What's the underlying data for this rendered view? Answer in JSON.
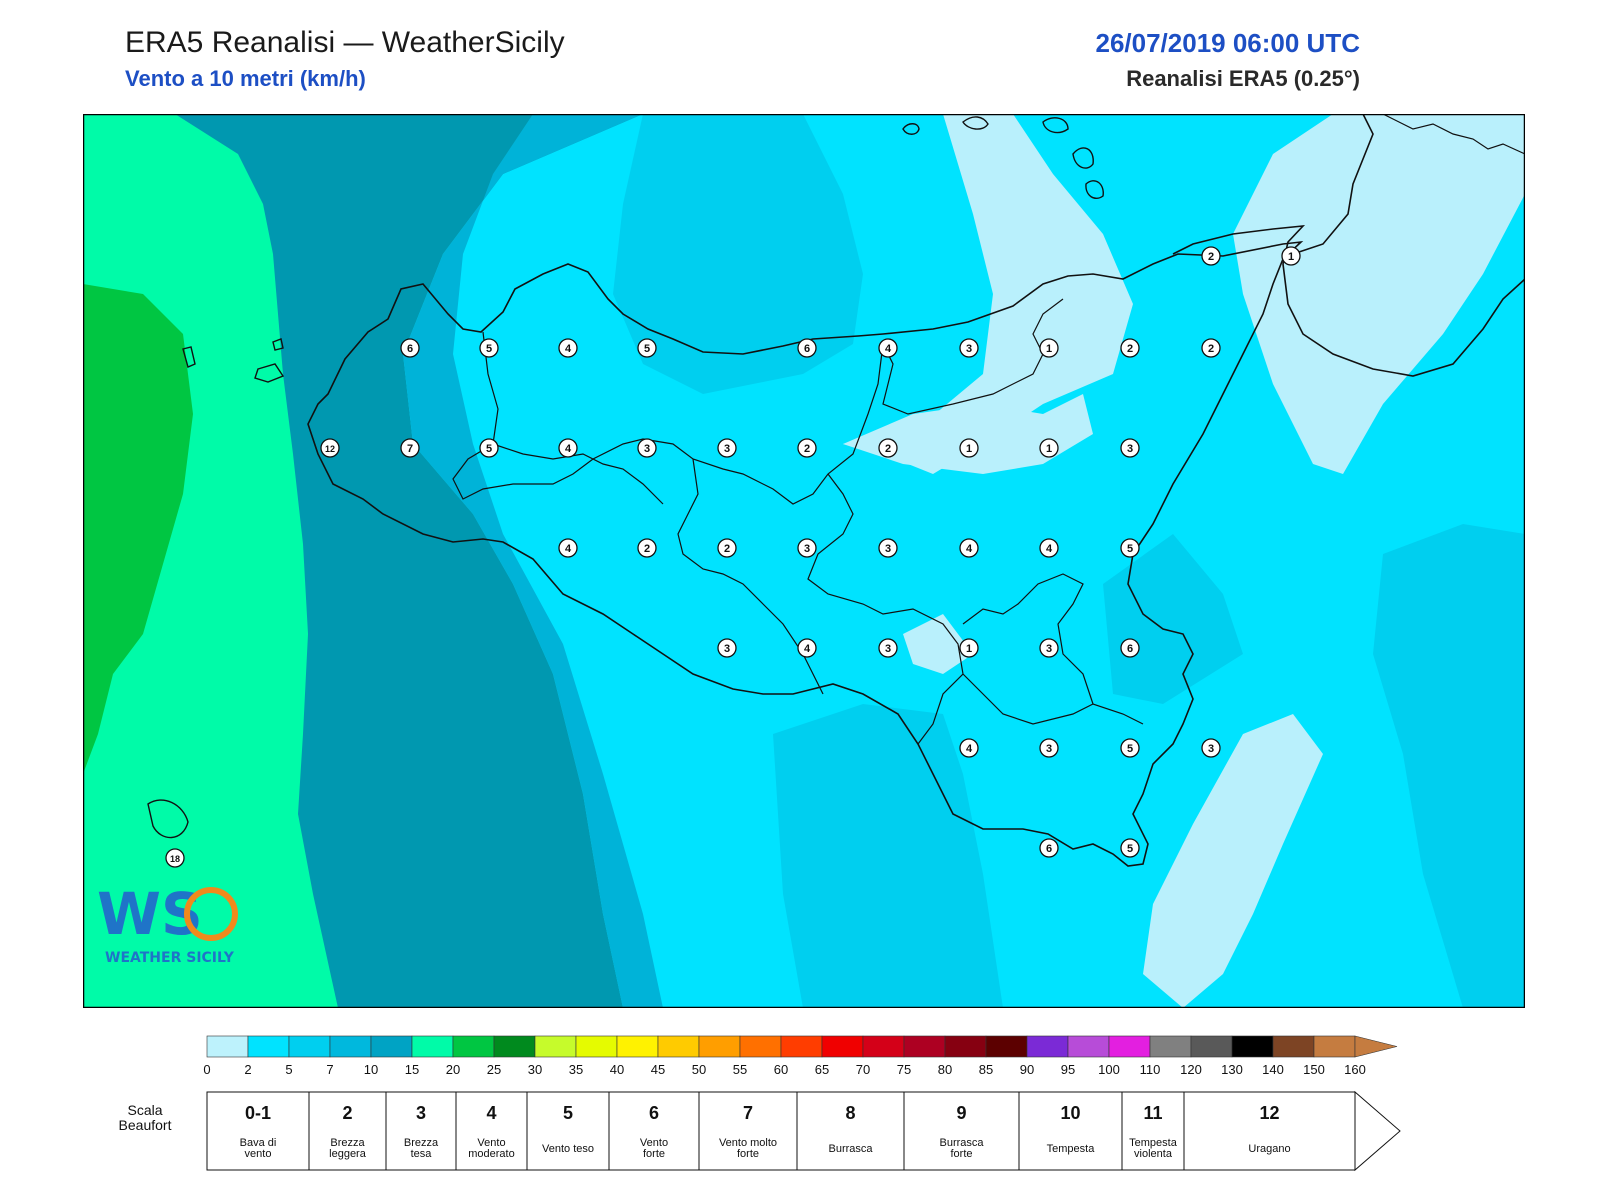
{
  "header": {
    "title": "ERA5 Reanalisi — WeatherSicily",
    "subtitle": "Vento a 10 metri (km/h)",
    "datetime": "26/07/2019 06:00 UTC",
    "source": "Reanalisi ERA5 (0.25°)"
  },
  "logo": {
    "text": "WEATHER SICILY",
    "initials": "WS"
  },
  "colors": {
    "lightest": "#b9f0fc",
    "band_2_5": "#00e3ff",
    "band_5_7": "#00cfef",
    "band_7_10": "#00b3d8",
    "band_10_15": "#0098b0",
    "band_15_20": "#00fba8",
    "band_20_25": "#00c642",
    "coast": "#111111"
  },
  "map": {
    "stations": [
      {
        "v": "6"
      },
      {
        "v": "5"
      },
      {
        "v": "4"
      },
      {
        "v": "5"
      },
      {
        "v": "6"
      },
      {
        "v": "4"
      },
      {
        "v": "3"
      },
      {
        "v": "1"
      },
      {
        "v": "2"
      },
      {
        "v": "2"
      },
      {
        "v": "12"
      },
      {
        "v": "7"
      },
      {
        "v": "5"
      },
      {
        "v": "4"
      },
      {
        "v": "3"
      },
      {
        "v": "3"
      },
      {
        "v": "2"
      },
      {
        "v": "2"
      },
      {
        "v": "1"
      },
      {
        "v": "1"
      },
      {
        "v": "3"
      },
      {
        "v": "4"
      },
      {
        "v": "2"
      },
      {
        "v": "2"
      },
      {
        "v": "3"
      },
      {
        "v": "3"
      },
      {
        "v": "4"
      },
      {
        "v": "4"
      },
      {
        "v": "5"
      },
      {
        "v": "3"
      },
      {
        "v": "4"
      },
      {
        "v": "3"
      },
      {
        "v": "1"
      },
      {
        "v": "3"
      },
      {
        "v": "6"
      },
      {
        "v": "4"
      },
      {
        "v": "3"
      },
      {
        "v": "5"
      },
      {
        "v": "3"
      },
      {
        "v": "6"
      },
      {
        "v": "5"
      },
      {
        "v": "2"
      },
      {
        "v": "1"
      },
      {
        "v": "18"
      }
    ]
  },
  "colorbar": {
    "ticks": [
      "0",
      "2",
      "5",
      "7",
      "10",
      "15",
      "20",
      "25",
      "30",
      "35",
      "40",
      "45",
      "50",
      "55",
      "60",
      "65",
      "70",
      "75",
      "80",
      "85",
      "90",
      "95",
      "100",
      "110",
      "120",
      "130",
      "140",
      "150",
      "160"
    ],
    "colors": [
      "#bdf2fc",
      "#00e3ff",
      "#00cfef",
      "#00b8dd",
      "#00a3c4",
      "#00fba8",
      "#00c642",
      "#008a1e",
      "#c6fb2b",
      "#e5fb00",
      "#fff200",
      "#ffcb00",
      "#ff9e00",
      "#ff7000",
      "#ff3d00",
      "#f00000",
      "#d40018",
      "#ad0022",
      "#860011",
      "#5c0000",
      "#7b2ad6",
      "#b74cd8",
      "#e31fe0",
      "#808080",
      "#595959",
      "#000000",
      "#7d4424",
      "#c57c40"
    ]
  },
  "beaufort": {
    "label": "Scala Beaufort",
    "cells": [
      {
        "n": "0-1",
        "d": "Bava di vento"
      },
      {
        "n": "2",
        "d": "Brezza leggera"
      },
      {
        "n": "3",
        "d": "Brezza tesa"
      },
      {
        "n": "4",
        "d": "Vento moderato"
      },
      {
        "n": "5",
        "d": "Vento teso"
      },
      {
        "n": "6",
        "d": "Vento forte"
      },
      {
        "n": "7",
        "d": "Vento molto forte"
      },
      {
        "n": "8",
        "d": "Burrasca"
      },
      {
        "n": "9",
        "d": "Burrasca forte"
      },
      {
        "n": "10",
        "d": "Tempesta"
      },
      {
        "n": "11",
        "d": "Tempesta violenta"
      },
      {
        "n": "12",
        "d": "Uragano"
      }
    ]
  }
}
